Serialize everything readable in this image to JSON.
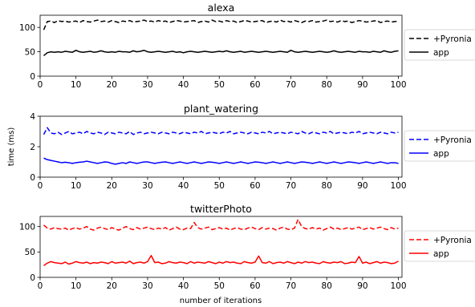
{
  "figure": {
    "ylabel": "time (ms)",
    "xlabel": "number of iterations"
  },
  "chart_data": [
    {
      "type": "line",
      "title": "alexa",
      "xlim": [
        0,
        101
      ],
      "ylim": [
        0,
        125
      ],
      "xticks": [
        0,
        10,
        20,
        30,
        40,
        50,
        60,
        70,
        80,
        90,
        100
      ],
      "yticks": [
        0,
        50,
        100
      ],
      "grid": false,
      "legend_position": "right",
      "series": [
        {
          "name": "+Pyronia",
          "color": "#000000",
          "dash": "dashed",
          "x_start": 1,
          "values": [
            95,
            112,
            113,
            110,
            114,
            112,
            113,
            111,
            112,
            113,
            110,
            114,
            112,
            111,
            113,
            115,
            112,
            113,
            111,
            114,
            112,
            110,
            113,
            112,
            114,
            111,
            112,
            113,
            115,
            112,
            113,
            111,
            114,
            112,
            113,
            110,
            112,
            114,
            113,
            111,
            112,
            113,
            114,
            110,
            112,
            113,
            111,
            115,
            112,
            113,
            111,
            114,
            112,
            113,
            110,
            112,
            114,
            113,
            111,
            112,
            113,
            114,
            110,
            112,
            113,
            111,
            115,
            112,
            113,
            111,
            114,
            112,
            110,
            113,
            112,
            114,
            111,
            112,
            113,
            115,
            112,
            113,
            111,
            114,
            112,
            113,
            110,
            112,
            114,
            113,
            111,
            112,
            113,
            114,
            110,
            112,
            113,
            111,
            112,
            113
          ]
        },
        {
          "name": "app",
          "color": "#000000",
          "dash": "solid",
          "x_start": 1,
          "values": [
            42,
            48,
            50,
            49,
            50,
            49,
            51,
            50,
            49,
            53,
            50,
            49,
            50,
            51,
            49,
            50,
            52,
            50,
            49,
            50,
            49,
            51,
            50,
            50,
            49,
            52,
            50,
            51,
            53,
            50,
            49,
            50,
            51,
            50,
            49,
            50,
            51,
            49,
            50,
            48,
            50,
            51,
            50,
            49,
            50,
            51,
            50,
            49,
            50,
            51,
            50,
            52,
            50,
            49,
            50,
            51,
            49,
            50,
            51,
            50,
            49,
            50,
            51,
            50,
            49,
            50,
            51,
            50,
            49,
            53,
            50,
            49,
            50,
            51,
            50,
            49,
            50,
            51,
            50,
            49,
            50,
            52,
            50,
            49,
            50,
            51,
            50,
            49,
            51,
            50,
            50,
            49,
            51,
            50,
            49,
            52,
            50,
            49,
            51,
            52
          ]
        }
      ]
    },
    {
      "type": "line",
      "title": "plant_watering",
      "xlim": [
        0,
        101
      ],
      "ylim": [
        0,
        4
      ],
      "xticks": [
        0,
        10,
        20,
        30,
        40,
        50,
        60,
        70,
        80,
        90,
        100
      ],
      "yticks": [
        0,
        2,
        4
      ],
      "grid": false,
      "legend_position": "right",
      "series": [
        {
          "name": "+Pyronia",
          "color": "#0000ff",
          "dash": "dashed",
          "x_start": 1,
          "values": [
            2.8,
            3.25,
            2.9,
            2.85,
            2.95,
            2.8,
            2.9,
            3.0,
            2.85,
            2.9,
            2.95,
            2.85,
            3.0,
            2.9,
            2.85,
            2.95,
            2.9,
            2.8,
            2.95,
            2.9,
            2.85,
            2.95,
            2.9,
            2.85,
            3.0,
            2.8,
            2.9,
            2.95,
            2.85,
            2.9,
            2.95,
            2.9,
            2.85,
            2.95,
            2.9,
            2.85,
            2.95,
            2.9,
            2.85,
            2.95,
            2.9,
            2.85,
            2.95,
            2.9,
            3.0,
            2.85,
            2.9,
            2.95,
            2.9,
            2.85,
            2.95,
            2.9,
            3.0,
            2.85,
            2.9,
            2.95,
            2.9,
            2.85,
            2.95,
            2.9,
            2.85,
            2.95,
            2.9,
            3.0,
            2.85,
            2.9,
            2.95,
            2.9,
            2.85,
            2.95,
            2.9,
            2.85,
            3.0,
            2.9,
            2.85,
            2.95,
            2.9,
            2.85,
            2.95,
            2.9,
            3.0,
            2.85,
            2.9,
            2.95,
            2.9,
            2.85,
            2.95,
            2.9,
            3.0,
            2.85,
            2.9,
            2.95,
            2.9,
            2.85,
            2.95,
            2.9,
            2.85,
            2.95,
            2.9,
            2.95
          ]
        },
        {
          "name": "app",
          "color": "#0000ff",
          "dash": "solid",
          "x_start": 1,
          "values": [
            1.25,
            1.15,
            1.1,
            1.05,
            1.0,
            0.95,
            0.98,
            0.95,
            0.9,
            0.95,
            0.98,
            1.0,
            1.05,
            1.0,
            0.95,
            0.9,
            0.95,
            1.0,
            0.98,
            0.9,
            0.85,
            0.9,
            0.95,
            0.9,
            1.0,
            0.95,
            0.9,
            0.95,
            1.0,
            1.0,
            0.95,
            0.9,
            0.95,
            0.98,
            1.0,
            0.95,
            0.9,
            0.95,
            1.0,
            0.95,
            0.9,
            0.95,
            1.0,
            0.95,
            0.9,
            0.95,
            1.0,
            0.98,
            0.95,
            0.9,
            0.95,
            1.0,
            0.95,
            0.9,
            0.95,
            1.0,
            0.95,
            0.9,
            0.95,
            1.0,
            0.98,
            0.95,
            0.9,
            0.95,
            1.0,
            0.95,
            0.9,
            0.95,
            1.0,
            0.95,
            0.9,
            0.95,
            1.0,
            0.98,
            0.95,
            0.9,
            0.95,
            1.0,
            0.95,
            0.9,
            0.95,
            1.0,
            0.95,
            0.9,
            0.95,
            1.0,
            0.98,
            0.95,
            0.9,
            0.95,
            1.0,
            0.95,
            0.9,
            0.95,
            1.0,
            0.95,
            0.9,
            0.95,
            0.95,
            0.9
          ]
        }
      ]
    },
    {
      "type": "line",
      "title": "twitterPhoto",
      "xlim": [
        0,
        101
      ],
      "ylim": [
        0,
        120
      ],
      "xticks": [
        0,
        10,
        20,
        30,
        40,
        50,
        60,
        70,
        80,
        90,
        100
      ],
      "yticks": [
        0,
        50,
        100
      ],
      "grid": false,
      "legend_position": "right",
      "series": [
        {
          "name": "+Pyronia",
          "color": "#ff0000",
          "dash": "dashed",
          "x_start": 1,
          "values": [
            103,
            97,
            95,
            98,
            96,
            95,
            97,
            93,
            96,
            98,
            95,
            97,
            100,
            95,
            93,
            97,
            99,
            96,
            94,
            98,
            95,
            93,
            97,
            100,
            96,
            94,
            98,
            95,
            97,
            99,
            96,
            94,
            97,
            95,
            98,
            93,
            96,
            99,
            95,
            94,
            97,
            96,
            108,
            98,
            95,
            97,
            99,
            94,
            96,
            98,
            95,
            97,
            93,
            96,
            98,
            95,
            94,
            97,
            99,
            96,
            94,
            98,
            95,
            97,
            96,
            93,
            97,
            99,
            95,
            94,
            97,
            114,
            100,
            96,
            95,
            98,
            95,
            97,
            93,
            96,
            99,
            95,
            97,
            94,
            96,
            98,
            95,
            97,
            99,
            94,
            96,
            98,
            95,
            97,
            99,
            96,
            94,
            98,
            95,
            97
          ]
        },
        {
          "name": "app",
          "color": "#ff0000",
          "dash": "solid",
          "x_start": 1,
          "values": [
            23,
            28,
            31,
            29,
            28,
            27,
            30,
            26,
            28,
            31,
            29,
            28,
            30,
            27,
            29,
            28,
            30,
            29,
            27,
            31,
            28,
            29,
            30,
            28,
            32,
            27,
            29,
            30,
            28,
            31,
            43,
            29,
            30,
            27,
            28,
            31,
            29,
            28,
            30,
            29,
            27,
            31,
            28,
            30,
            29,
            28,
            31,
            29,
            27,
            30,
            28,
            31,
            29,
            30,
            28,
            27,
            31,
            29,
            28,
            30,
            42,
            29,
            28,
            31,
            27,
            29,
            30,
            28,
            31,
            29,
            27,
            30,
            28,
            31,
            29,
            30,
            28,
            27,
            31,
            29,
            28,
            30,
            29,
            31,
            27,
            28,
            30,
            29,
            41,
            28,
            30,
            27,
            29,
            31,
            28,
            30,
            29,
            27,
            28,
            32
          ]
        }
      ]
    }
  ]
}
